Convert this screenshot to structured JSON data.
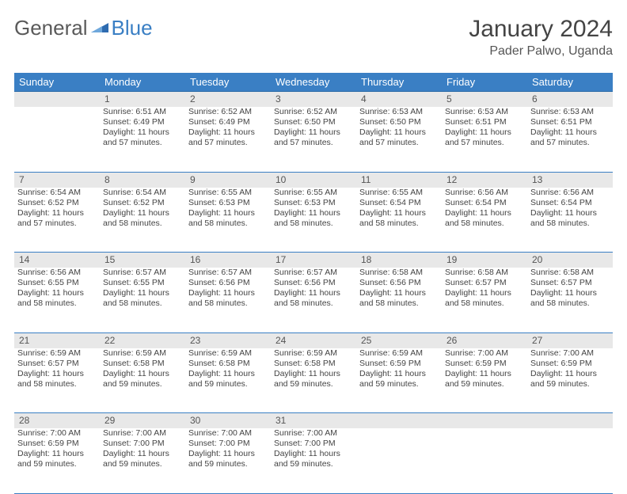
{
  "brand": {
    "part1": "General",
    "part2": "Blue"
  },
  "title": "January 2024",
  "location": "Pader Palwo, Uganda",
  "day_headers": [
    "Sunday",
    "Monday",
    "Tuesday",
    "Wednesday",
    "Thursday",
    "Friday",
    "Saturday"
  ],
  "colors": {
    "header_bg": "#3a7fc4",
    "header_text": "#ffffff",
    "daynum_bg": "#e8e8e8",
    "rule": "#3a7fc4",
    "body_text": "#444444",
    "brand_grey": "#5a5a5a",
    "brand_blue": "#3a7fc4"
  },
  "weeks": [
    {
      "nums": [
        "",
        "1",
        "2",
        "3",
        "4",
        "5",
        "6"
      ],
      "cells": [
        null,
        {
          "sunrise": "Sunrise: 6:51 AM",
          "sunset": "Sunset: 6:49 PM",
          "d1": "Daylight: 11 hours",
          "d2": "and 57 minutes."
        },
        {
          "sunrise": "Sunrise: 6:52 AM",
          "sunset": "Sunset: 6:49 PM",
          "d1": "Daylight: 11 hours",
          "d2": "and 57 minutes."
        },
        {
          "sunrise": "Sunrise: 6:52 AM",
          "sunset": "Sunset: 6:50 PM",
          "d1": "Daylight: 11 hours",
          "d2": "and 57 minutes."
        },
        {
          "sunrise": "Sunrise: 6:53 AM",
          "sunset": "Sunset: 6:50 PM",
          "d1": "Daylight: 11 hours",
          "d2": "and 57 minutes."
        },
        {
          "sunrise": "Sunrise: 6:53 AM",
          "sunset": "Sunset: 6:51 PM",
          "d1": "Daylight: 11 hours",
          "d2": "and 57 minutes."
        },
        {
          "sunrise": "Sunrise: 6:53 AM",
          "sunset": "Sunset: 6:51 PM",
          "d1": "Daylight: 11 hours",
          "d2": "and 57 minutes."
        }
      ]
    },
    {
      "nums": [
        "7",
        "8",
        "9",
        "10",
        "11",
        "12",
        "13"
      ],
      "cells": [
        {
          "sunrise": "Sunrise: 6:54 AM",
          "sunset": "Sunset: 6:52 PM",
          "d1": "Daylight: 11 hours",
          "d2": "and 57 minutes."
        },
        {
          "sunrise": "Sunrise: 6:54 AM",
          "sunset": "Sunset: 6:52 PM",
          "d1": "Daylight: 11 hours",
          "d2": "and 58 minutes."
        },
        {
          "sunrise": "Sunrise: 6:55 AM",
          "sunset": "Sunset: 6:53 PM",
          "d1": "Daylight: 11 hours",
          "d2": "and 58 minutes."
        },
        {
          "sunrise": "Sunrise: 6:55 AM",
          "sunset": "Sunset: 6:53 PM",
          "d1": "Daylight: 11 hours",
          "d2": "and 58 minutes."
        },
        {
          "sunrise": "Sunrise: 6:55 AM",
          "sunset": "Sunset: 6:54 PM",
          "d1": "Daylight: 11 hours",
          "d2": "and 58 minutes."
        },
        {
          "sunrise": "Sunrise: 6:56 AM",
          "sunset": "Sunset: 6:54 PM",
          "d1": "Daylight: 11 hours",
          "d2": "and 58 minutes."
        },
        {
          "sunrise": "Sunrise: 6:56 AM",
          "sunset": "Sunset: 6:54 PM",
          "d1": "Daylight: 11 hours",
          "d2": "and 58 minutes."
        }
      ]
    },
    {
      "nums": [
        "14",
        "15",
        "16",
        "17",
        "18",
        "19",
        "20"
      ],
      "cells": [
        {
          "sunrise": "Sunrise: 6:56 AM",
          "sunset": "Sunset: 6:55 PM",
          "d1": "Daylight: 11 hours",
          "d2": "and 58 minutes."
        },
        {
          "sunrise": "Sunrise: 6:57 AM",
          "sunset": "Sunset: 6:55 PM",
          "d1": "Daylight: 11 hours",
          "d2": "and 58 minutes."
        },
        {
          "sunrise": "Sunrise: 6:57 AM",
          "sunset": "Sunset: 6:56 PM",
          "d1": "Daylight: 11 hours",
          "d2": "and 58 minutes."
        },
        {
          "sunrise": "Sunrise: 6:57 AM",
          "sunset": "Sunset: 6:56 PM",
          "d1": "Daylight: 11 hours",
          "d2": "and 58 minutes."
        },
        {
          "sunrise": "Sunrise: 6:58 AM",
          "sunset": "Sunset: 6:56 PM",
          "d1": "Daylight: 11 hours",
          "d2": "and 58 minutes."
        },
        {
          "sunrise": "Sunrise: 6:58 AM",
          "sunset": "Sunset: 6:57 PM",
          "d1": "Daylight: 11 hours",
          "d2": "and 58 minutes."
        },
        {
          "sunrise": "Sunrise: 6:58 AM",
          "sunset": "Sunset: 6:57 PM",
          "d1": "Daylight: 11 hours",
          "d2": "and 58 minutes."
        }
      ]
    },
    {
      "nums": [
        "21",
        "22",
        "23",
        "24",
        "25",
        "26",
        "27"
      ],
      "cells": [
        {
          "sunrise": "Sunrise: 6:59 AM",
          "sunset": "Sunset: 6:57 PM",
          "d1": "Daylight: 11 hours",
          "d2": "and 58 minutes."
        },
        {
          "sunrise": "Sunrise: 6:59 AM",
          "sunset": "Sunset: 6:58 PM",
          "d1": "Daylight: 11 hours",
          "d2": "and 59 minutes."
        },
        {
          "sunrise": "Sunrise: 6:59 AM",
          "sunset": "Sunset: 6:58 PM",
          "d1": "Daylight: 11 hours",
          "d2": "and 59 minutes."
        },
        {
          "sunrise": "Sunrise: 6:59 AM",
          "sunset": "Sunset: 6:58 PM",
          "d1": "Daylight: 11 hours",
          "d2": "and 59 minutes."
        },
        {
          "sunrise": "Sunrise: 6:59 AM",
          "sunset": "Sunset: 6:59 PM",
          "d1": "Daylight: 11 hours",
          "d2": "and 59 minutes."
        },
        {
          "sunrise": "Sunrise: 7:00 AM",
          "sunset": "Sunset: 6:59 PM",
          "d1": "Daylight: 11 hours",
          "d2": "and 59 minutes."
        },
        {
          "sunrise": "Sunrise: 7:00 AM",
          "sunset": "Sunset: 6:59 PM",
          "d1": "Daylight: 11 hours",
          "d2": "and 59 minutes."
        }
      ]
    },
    {
      "nums": [
        "28",
        "29",
        "30",
        "31",
        "",
        "",
        ""
      ],
      "cells": [
        {
          "sunrise": "Sunrise: 7:00 AM",
          "sunset": "Sunset: 6:59 PM",
          "d1": "Daylight: 11 hours",
          "d2": "and 59 minutes."
        },
        {
          "sunrise": "Sunrise: 7:00 AM",
          "sunset": "Sunset: 7:00 PM",
          "d1": "Daylight: 11 hours",
          "d2": "and 59 minutes."
        },
        {
          "sunrise": "Sunrise: 7:00 AM",
          "sunset": "Sunset: 7:00 PM",
          "d1": "Daylight: 11 hours",
          "d2": "and 59 minutes."
        },
        {
          "sunrise": "Sunrise: 7:00 AM",
          "sunset": "Sunset: 7:00 PM",
          "d1": "Daylight: 11 hours",
          "d2": "and 59 minutes."
        },
        null,
        null,
        null
      ]
    }
  ]
}
